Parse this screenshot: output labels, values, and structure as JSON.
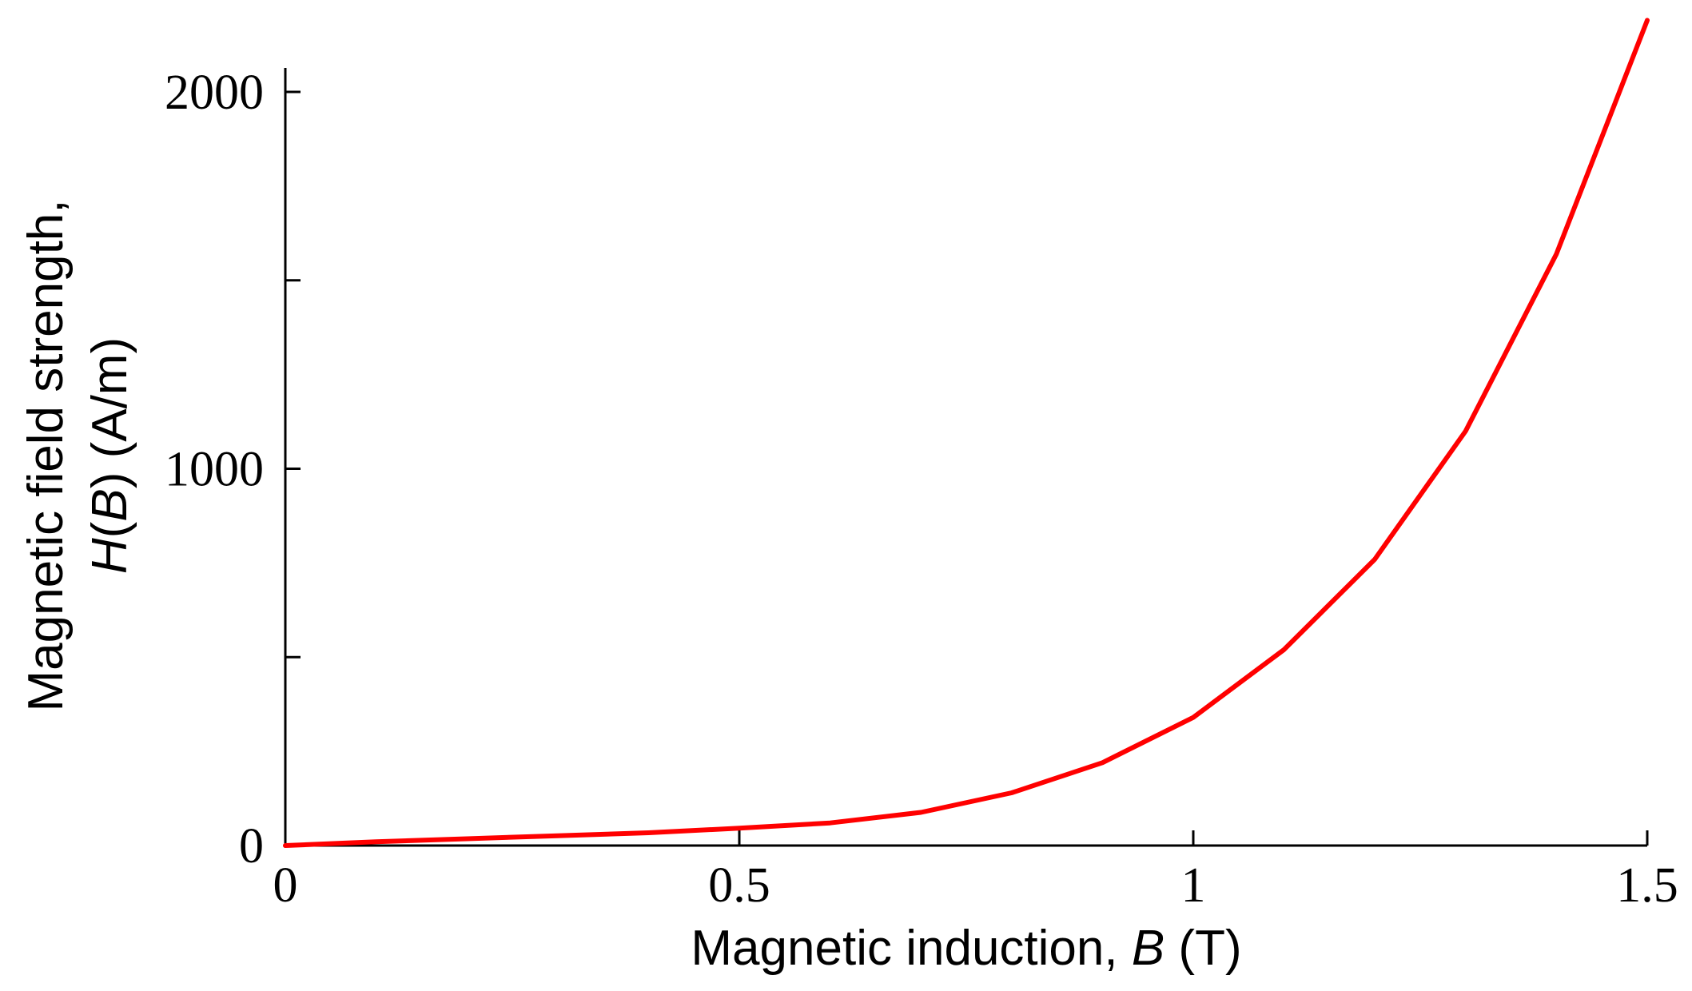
{
  "chart_data": {
    "type": "line",
    "xlabel": {
      "prefix": "Magnetic induction, ",
      "variable": "B",
      "suffix": " (T)"
    },
    "ylabel": {
      "line1": "Magnetic field strength,",
      "line2_variable": "H",
      "line2_mid": "(",
      "line2_arg": "B",
      "line2_suffix": ") (A/m)"
    },
    "xlim": [
      0,
      1.5
    ],
    "ylim": [
      0,
      2000
    ],
    "x_ticks": [
      {
        "value": 0,
        "label": "0"
      },
      {
        "value": 0.5,
        "label": "0.5"
      },
      {
        "value": 1,
        "label": "1"
      },
      {
        "value": 1.5,
        "label": "1.5"
      }
    ],
    "y_ticks": [
      {
        "value": 0,
        "label": "0"
      },
      {
        "value": 500,
        "label": ""
      },
      {
        "value": 1000,
        "label": "1000"
      },
      {
        "value": 1500,
        "label": ""
      },
      {
        "value": 2000,
        "label": "2000"
      }
    ],
    "grid": false,
    "series": [
      {
        "color": "#ff0000",
        "x": [
          0,
          0.1,
          0.2,
          0.3,
          0.4,
          0.5,
          0.6,
          0.7,
          0.8,
          0.9,
          1.0,
          1.1,
          1.2,
          1.3,
          1.4,
          1.5
        ],
        "y": [
          0,
          10,
          18,
          26,
          34,
          46,
          60,
          88,
          140,
          220,
          340,
          520,
          760,
          1100,
          1570,
          2190
        ]
      }
    ]
  }
}
